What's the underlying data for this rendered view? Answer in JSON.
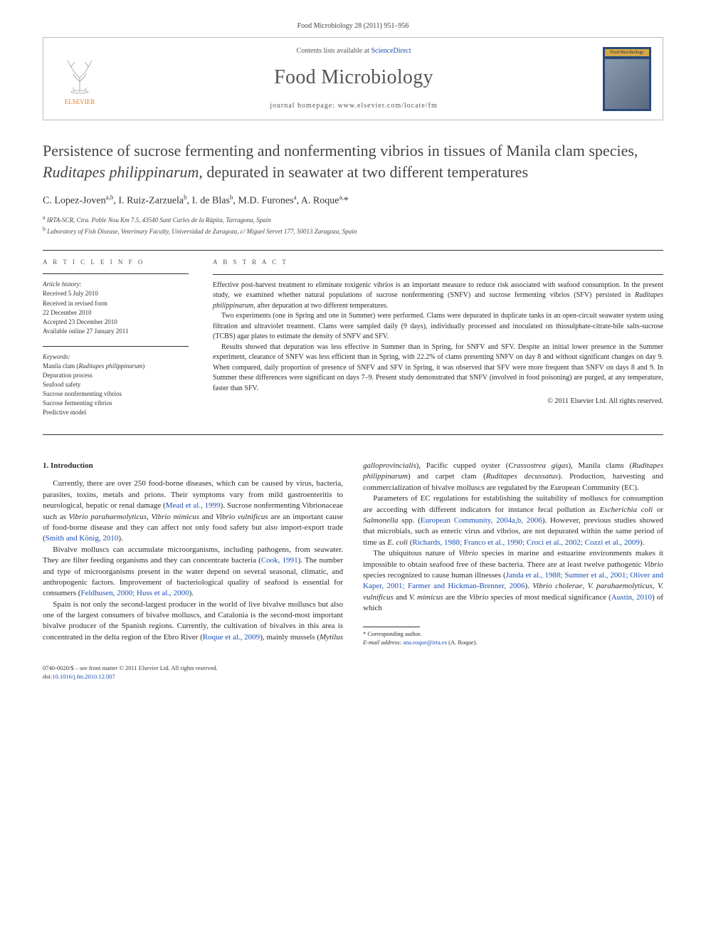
{
  "citation": "Food Microbiology 28 (2011) 951–956",
  "header": {
    "contents_prefix": "Contents lists available at ",
    "contents_link": "ScienceDirect",
    "journal": "Food Microbiology",
    "homepage_prefix": "journal homepage: ",
    "homepage": "www.elsevier.com/locate/fm",
    "publisher": "ELSEVIER",
    "cover_label": "Food Microbiology"
  },
  "title_parts": {
    "p1": "Persistence of sucrose fermenting and nonfermenting vibrios in tissues of Manila clam species, ",
    "italic": "Ruditapes philippinarum",
    "p2": ", depurated in seawater at two different temperatures"
  },
  "authors_html": "C. Lopez-Joven<sup>a,b</sup>, I. Ruiz-Zarzuela<sup>b</sup>, I. de Blas<sup>b</sup>, M.D. Furones<sup>a</sup>, A. Roque<sup>a,</sup><span class='corr'>*</span>",
  "affiliations": {
    "a": "IRTA-SCR, Ctra. Poble Nou Km 7.5, 43540 Sant Carles de la Ràpita, Tarragona, Spain",
    "b": "Laboratory of Fish Disease, Veterinary Faculty, Universidad de Zaragoza, c/ Miguel Servet 177, 50013 Zaragoza, Spain"
  },
  "article_info": {
    "heading": "A R T I C L E   I N F O",
    "history_label": "Article history:",
    "history": [
      "Received 5 July 2010",
      "Received in revised form",
      "22 December 2010",
      "Accepted 23 December 2010",
      "Available online 27 January 2011"
    ],
    "keywords_label": "Keywords:",
    "keywords": [
      "Manila clam (Ruditapes philippinarum)",
      "Depuration process",
      "Seafood safety",
      "Sucrose nonfermenting vibrios",
      "Sucrose fermenting vibrios",
      "Predictive model"
    ]
  },
  "abstract": {
    "heading": "A B S T R A C T",
    "paragraphs": [
      "Effective post-harvest treatment to eliminate toxigenic vibrios is an important measure to reduce risk associated with seafood consumption. In the present study, we examined whether natural populations of sucrose nonfermenting (SNFV) and sucrose fermenting vibrios (SFV) persisted in Ruditapes philippinarum, after depuration at two different temperatures.",
      "Two experiments (one in Spring and one in Summer) were performed. Clams were depurated in duplicate tanks in an open-circuit seawater system using filtration and ultraviolet treatment. Clams were sampled daily (9 days), individually processed and inoculated on thiosulphate-citrate-bile salts-sucrose (TCBS) agar plates to estimate the density of SNFV and SFV.",
      "Results showed that depuration was less effective in Summer than in Spring, for SNFV and SFV. Despite an initial lower presence in the Summer experiment, clearance of SNFV was less efficient than in Spring, with 22.2% of clams presenting SNFV on day 8 and without significant changes on day 9. When compared, daily proportion of presence of SNFV and SFV in Spring, it was observed that SFV were more frequent than SNFV on days 8 and 9. In Summer these differences were significant on days 7–9. Present study demonstrated that SNFV (involved in food poisoning) are purged, at any temperature, faster than SFV."
    ],
    "copyright": "© 2011 Elsevier Ltd. All rights reserved."
  },
  "section1": {
    "heading": "1. Introduction",
    "paragraphs": [
      "Currently, there are over 250 food-borne diseases, which can be caused by virus, bacteria, parasites, toxins, metals and prions. Their symptoms vary from mild gastroenteritis to neurological, hepatic or renal damage (<span class='ref'>Mead et al., 1999</span>). Sucrose nonfermenting Vibrionaceae such as <span class='ital'>Vibrio parahaemolyticus</span>, <span class='ital'>Vibrio mimicus</span> and <span class='ital'>Vibrio vulnificus</span> are an important cause of food-borne disease and they can affect not only food safety but also import-export trade (<span class='ref'>Smith and König, 2010</span>).",
      "Bivalve molluscs can accumulate microorganisms, including pathogens, from seawater. They are filter feeding organisms and they can concentrate bacteria (<span class='ref'>Cook, 1991</span>). The number and type of microorganisms present in the water depend on several seasonal, climatic, and anthropogenic factors. Improvement of bacteriological quality of seafood is essential for consumers (<span class='ref'>Feldhusen, 2000; Huss et al., 2000</span>).",
      "Spain is not only the second-largest producer in the world of live bivalve molluscs but also one of the largest consumers of bivalve molluscs, and Catalonia is the second-most important bivalve producer of the Spanish regions. Currently, the cultivation of bivalves in this area is concentrated in the delta region of the Ebro River (<span class='ref'>Roque et al., 2009</span>), mainly mussels (<span class='ital'>Mytilus galloprovincialis</span>), Pacific cupped oyster (<span class='ital'>Crassostrea gigas</span>), Manila clams (<span class='ital'>Ruditapes philippinarum</span>) and carpet clam (<span class='ital'>Ruditapes decussatus</span>). Production, harvesting and commercialization of bivalve molluscs are regulated by the European Community (EC).",
      "Parameters of EC regulations for establishing the suitability of molluscs for consumption are according with different indicators for instance fecal pollution as <span class='ital'>Escherichia coli</span> or <span class='ital'>Salmonella</span> spp. (<span class='ref'>European Community, 2004a,b, 2006</span>). However, previous studies showed that microbials, such as enteric virus and vibrios, are not depurated within the same period of time as <span class='ital'>E. coli</span> (<span class='ref'>Richards, 1988; Franco et al., 1990; Croci et al., 2002; Cozzi et al., 2009</span>).",
      "The ubiquitous nature of <span class='ital'>Vibrio</span> species in marine and estuarine environments makes it impossible to obtain seafood free of these bacteria. There are at least twelve pathogenic <span class='ital'>Vibrio</span> species recognized to cause human illnesses (<span class='ref'>Janda et al., 1988; Sumner et al., 2001; Oliver and Kaper, 2001; Farmer and Hickman-Brenner, 2006</span>). <span class='ital'>Vibrio cholerae</span>, <span class='ital'>V. parahaemolyticus</span>, <span class='ital'>V. vulnificus</span> and <span class='ital'>V. mimicus</span> are the <span class='ital'>Vibrio</span> species of most medical significance (<span class='ref'>Austin, 2010</span>) of which"
    ]
  },
  "footnote": {
    "corr_label": "* Corresponding author.",
    "email_label": "E-mail address:",
    "email": "ana.roque@irta.es",
    "email_author": "(A. Roque)."
  },
  "bottom": {
    "line1": "0740-0020/$ – see front matter © 2011 Elsevier Ltd. All rights reserved.",
    "doi_label": "doi:",
    "doi": "10.1016/j.fm.2010.12.007"
  },
  "colors": {
    "link": "#1a4fb3",
    "elsevier": "#e67a1a",
    "text": "#2a2a2a"
  }
}
